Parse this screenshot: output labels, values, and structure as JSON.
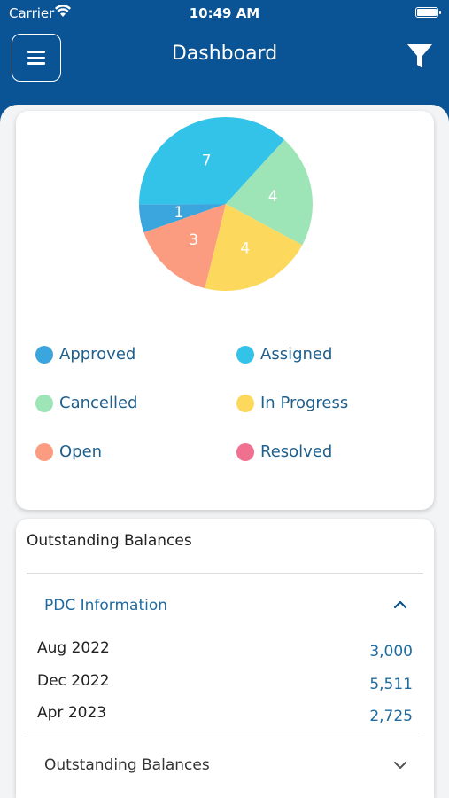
{
  "status_bar": {
    "carrier": "Carrier",
    "time": "10:49 AM"
  },
  "header": {
    "title": "Dashboard"
  },
  "icons": {
    "menu": "menu-icon",
    "filter": "filter-icon",
    "wifi": "wifi-icon",
    "battery": "battery-icon"
  },
  "chart_data": {
    "type": "pie",
    "slices": [
      {
        "label": "Approved",
        "value": 1,
        "color": "#3aa6dd"
      },
      {
        "label": "Assigned",
        "value": 7,
        "color": "#33c3e8"
      },
      {
        "label": "Cancelled",
        "value": 4,
        "color": "#9de5b6"
      },
      {
        "label": "In Progress",
        "value": 4,
        "color": "#fcd95d"
      },
      {
        "label": "Open",
        "value": 3,
        "color": "#fb9c81"
      },
      {
        "label": "Resolved",
        "value": 0,
        "color": "#f2708f"
      }
    ],
    "legend": "bottom"
  },
  "balances": {
    "title": "Outstanding Balances",
    "pdc": {
      "title": "PDC Information",
      "rows": [
        {
          "label": "Aug 2022",
          "value": "3,000"
        },
        {
          "label": "Dec 2022",
          "value": "5,511"
        },
        {
          "label": "Apr 2023",
          "value": "2,725"
        }
      ]
    },
    "outstanding_section": {
      "title": "Outstanding Balances"
    }
  }
}
